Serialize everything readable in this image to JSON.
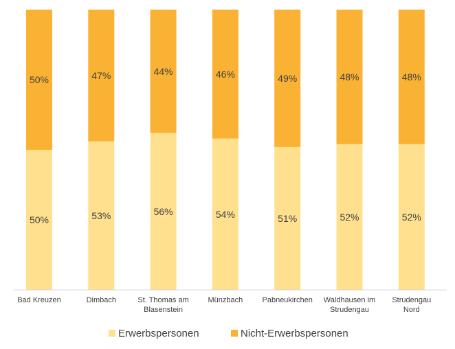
{
  "chart_data": {
    "type": "bar",
    "stacked": true,
    "normalized": true,
    "categories": [
      [
        "Bad Kreuzen"
      ],
      [
        "Dimbach"
      ],
      [
        "St. Thomas am",
        "Blasenstein"
      ],
      [
        "Münzbach"
      ],
      [
        "Pabneukirchen"
      ],
      [
        "Waldhausen im",
        "Strudengau"
      ],
      [
        "Strudengau",
        "Nord"
      ]
    ],
    "series": [
      {
        "name": "Erwerbspersonen",
        "color": "#FFE08F",
        "values": [
          50,
          53,
          56,
          54,
          51,
          52,
          52
        ],
        "labels": [
          "50%",
          "53%",
          "56%",
          "54%",
          "51%",
          "52%",
          "52%"
        ]
      },
      {
        "name": "Nicht-Erwerbspersonen",
        "color": "#F9B233",
        "values": [
          50,
          47,
          44,
          46,
          49,
          48,
          48
        ],
        "labels": [
          "50%",
          "47%",
          "44%",
          "46%",
          "49%",
          "48%",
          "48%"
        ]
      }
    ],
    "ylim": [
      0,
      100
    ],
    "grid": false,
    "legend": "bottom"
  }
}
